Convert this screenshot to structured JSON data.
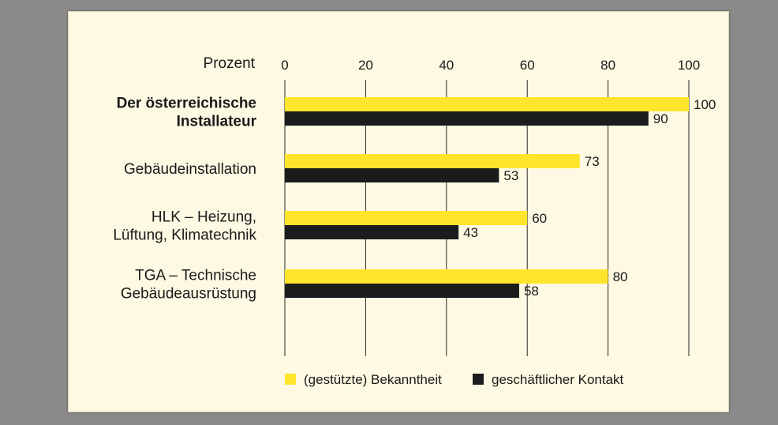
{
  "chart_data": {
    "type": "bar",
    "orientation": "horizontal",
    "unit_label": "Prozent",
    "xlim": [
      0,
      100
    ],
    "ticks": [
      0,
      20,
      40,
      60,
      80,
      100
    ],
    "grid": true,
    "legend_position": "bottom",
    "categories": [
      {
        "lines": [
          "Der österreichische",
          "Installateur"
        ],
        "bold": true
      },
      {
        "lines": [
          "Gebäudeinstallation"
        ],
        "bold": false
      },
      {
        "lines": [
          "HLK – Heizung,",
          "Lüftung, Klimatechnik"
        ],
        "bold": false
      },
      {
        "lines": [
          "TGA – Technische",
          "Gebäudeausrüstung"
        ],
        "bold": false
      }
    ],
    "series": [
      {
        "name": "(gestützte) Bekanntheit",
        "color": "#ffe52b",
        "values": [
          100,
          73,
          60,
          80
        ]
      },
      {
        "name": "geschäftlicher Kontakt",
        "color": "#1c1c1c",
        "values": [
          90,
          53,
          43,
          58
        ]
      }
    ]
  }
}
